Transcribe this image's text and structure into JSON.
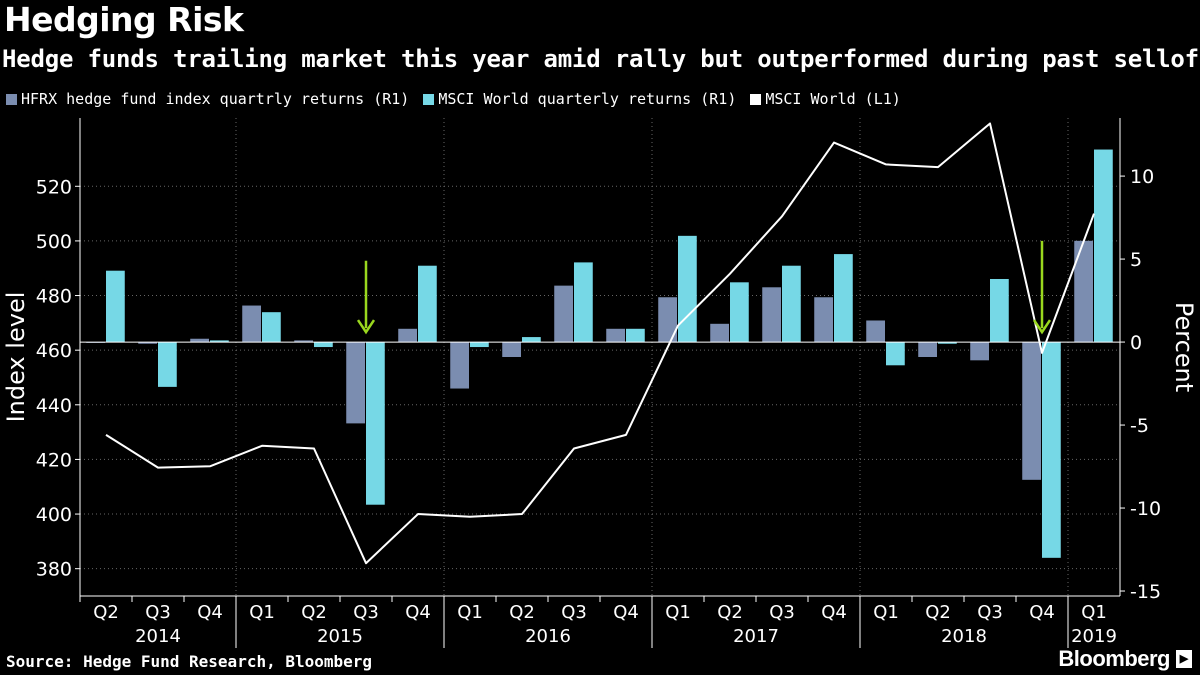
{
  "header": {
    "title": "Hedging Risk",
    "subtitle": "Hedge funds trailing market this year amid rally but outperformed during past selloff"
  },
  "legend": [
    {
      "label": "HFRX hedge fund index quartrly returns (R1)",
      "color": "#7b8db0"
    },
    {
      "label": "MSCI World quarterly returns (R1)",
      "color": "#76d8e6"
    },
    {
      "label": "MSCI World  (L1)",
      "color": "#ffffff"
    }
  ],
  "footer": {
    "source": "Source: Hedge Fund Research, Bloomberg",
    "brand": "Bloomberg",
    "brand_mark": "▶"
  },
  "chart_data": {
    "type": "bar+line",
    "categories": [
      "Q2",
      "Q3",
      "Q4",
      "Q1",
      "Q2",
      "Q3",
      "Q4",
      "Q1",
      "Q2",
      "Q3",
      "Q4",
      "Q1",
      "Q2",
      "Q3",
      "Q4",
      "Q1",
      "Q2",
      "Q3",
      "Q4",
      "Q1"
    ],
    "years": [
      {
        "label": "2014",
        "start": 0,
        "end": 2
      },
      {
        "label": "2015",
        "start": 3,
        "end": 6
      },
      {
        "label": "2016",
        "start": 7,
        "end": 10
      },
      {
        "label": "2017",
        "start": 11,
        "end": 14
      },
      {
        "label": "2018",
        "start": 15,
        "end": 18
      },
      {
        "label": "2019",
        "start": 19,
        "end": 19
      }
    ],
    "series": [
      {
        "name": "HFRX hedge fund index quartrly returns (R1)",
        "axis": "right",
        "kind": "bar",
        "color": "#7b8db0",
        "values": [
          0.0,
          -0.1,
          0.2,
          2.2,
          0.1,
          -4.9,
          0.8,
          -2.8,
          -0.9,
          3.4,
          0.8,
          2.7,
          1.1,
          3.3,
          2.7,
          1.3,
          -0.9,
          -1.1,
          -8.3,
          6.1
        ]
      },
      {
        "name": "MSCI World quarterly returns (R1)",
        "axis": "right",
        "kind": "bar",
        "color": "#76d8e6",
        "values": [
          4.3,
          -2.7,
          0.1,
          1.8,
          -0.3,
          -9.8,
          4.6,
          -0.3,
          0.3,
          4.8,
          0.8,
          6.4,
          3.6,
          4.6,
          5.3,
          -1.4,
          -0.1,
          3.8,
          -13.0,
          11.6
        ]
      },
      {
        "name": "MSCI World  (L1)",
        "axis": "left",
        "kind": "line",
        "color": "#ffffff",
        "values": [
          429,
          417,
          417.5,
          425,
          424,
          382,
          400,
          399,
          400,
          424,
          429,
          469,
          488,
          509,
          536,
          528,
          527,
          543,
          459,
          510
        ]
      }
    ],
    "left_axis": {
      "label": "Index level",
      "ticks": [
        380,
        400,
        420,
        440,
        460,
        480,
        500,
        520
      ],
      "range": [
        370,
        545
      ]
    },
    "right_axis": {
      "label": "Percent",
      "ticks": [
        10,
        5,
        0,
        -5,
        -10,
        -15
      ],
      "range": [
        -15.3,
        13.5
      ]
    },
    "annotations": [
      {
        "type": "arrow-down",
        "index": 5,
        "color": "#9ad81e"
      },
      {
        "type": "arrow-down",
        "index": 18,
        "color": "#9ad81e"
      }
    ]
  }
}
